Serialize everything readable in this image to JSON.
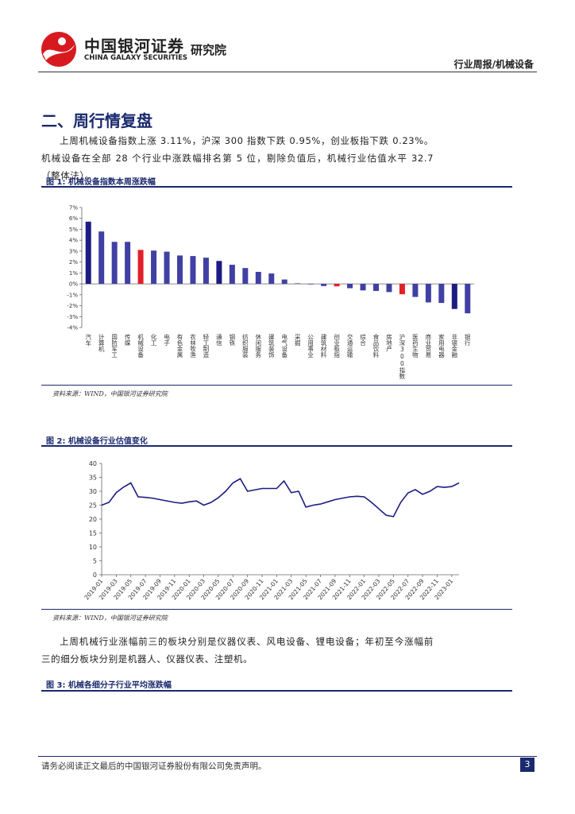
{
  "header": {
    "brand_cn": "中国银河证券",
    "brand_en": "CHINA GALAXY SECURITIES",
    "institute": "研究院",
    "report_type": "行业周报/机械设备"
  },
  "section": {
    "title": "二、周行情复盘"
  },
  "paragraphs": [
    "上周机械设备指数上涨 3.11%，沪深 300 指数下跌 0.95%，创业板指下跌 0.23%。机械设备在全部 28 个行业中涨跌幅排名第 5 位，剔除负值后，机械行业估值水平 32.7（整体法）。",
    "上周机械行业涨幅前三的板块分别是仪器仪表、风电设备、锂电设备；年初至今涨幅前三的细分板块分别是机器人、仪器仪表、注塑机。"
  ],
  "figures": [
    {
      "label": "图 1:",
      "title": "机械设备指数本周涨跌幅",
      "source": "资料来源：WIND，中国银河证券研究院",
      "chart_data": {
        "type": "bar",
        "categories": [
          "汽车",
          "计算机",
          "国防军工",
          "传媒",
          "机械设备",
          "化工",
          "电子",
          "有色金属",
          "农林牧渔",
          "轻工制造",
          "通信",
          "钢铁",
          "纺织服装",
          "休闲服务",
          "建筑装饰",
          "电气设备",
          "采掘",
          "公用事业",
          "建筑材料",
          "创业板指",
          "交通运输",
          "综合",
          "食品饮料",
          "房地产",
          "沪深300指数",
          "医药生物",
          "商业贸易",
          "家用电器",
          "非银金融",
          "银行"
        ],
        "values": [
          5.7,
          4.8,
          3.85,
          3.85,
          3.11,
          3.05,
          2.95,
          2.6,
          2.55,
          2.4,
          2.1,
          1.75,
          1.45,
          1.1,
          0.95,
          0.4,
          0.05,
          -0.05,
          -0.2,
          -0.23,
          -0.4,
          -0.6,
          -0.65,
          -0.75,
          -0.95,
          -1.2,
          -1.7,
          -1.75,
          -2.3,
          -2.7
        ],
        "colors": [
          "#1c1c82",
          "#4040a4",
          "#4040a4",
          "#4040a4",
          "#e2202a",
          "#4040a4",
          "#4040a4",
          "#4040a4",
          "#4040a4",
          "#4040a4",
          "#1c1c82",
          "#4040a4",
          "#4040a4",
          "#4040a4",
          "#4040a4",
          "#4040a4",
          "#4040a4",
          "#4040a4",
          "#4040a4",
          "#e2202a",
          "#4040a4",
          "#4040a4",
          "#4040a4",
          "#4040a4",
          "#e2202a",
          "#4040a4",
          "#4040a4",
          "#4040a4",
          "#1c1c82",
          "#4040a4"
        ],
        "ylim": [
          -4,
          7
        ],
        "yticks": [
          {
            "value": -4,
            "label": "-4%"
          },
          {
            "value": -3,
            "label": "-3%"
          },
          {
            "value": -2,
            "label": "-2%"
          },
          {
            "value": -1,
            "label": "-1%"
          },
          {
            "value": 0,
            "label": "0%"
          },
          {
            "value": 1,
            "label": "1%"
          },
          {
            "value": 2,
            "label": "2%"
          },
          {
            "value": 3,
            "label": "3%"
          },
          {
            "value": 4,
            "label": "4%"
          },
          {
            "value": 5,
            "label": "5%"
          },
          {
            "value": 6,
            "label": "6%"
          },
          {
            "value": 7,
            "label": "7%"
          }
        ],
        "grid": false
      }
    },
    {
      "label": "图 2:",
      "title": "机械设备行业估值变化",
      "source": "资料来源：WIND，中国银河证券研究院",
      "chart_data": {
        "type": "line",
        "x": [
          "2019-01",
          "2019-02",
          "2019-03",
          "2019-04",
          "2019-05",
          "2019-06",
          "2019-07",
          "2019-08",
          "2019-09",
          "2019-10",
          "2019-11",
          "2019-12",
          "2020-01",
          "2020-02",
          "2020-03",
          "2020-04",
          "2020-05",
          "2020-06",
          "2020-07",
          "2020-08",
          "2020-09",
          "2020-10",
          "2020-11",
          "2020-12",
          "2021-01",
          "2021-02",
          "2021-03",
          "2021-04",
          "2021-05",
          "2021-06",
          "2021-07",
          "2021-08",
          "2021-09",
          "2021-10",
          "2021-11",
          "2021-12",
          "2022-01",
          "2022-02",
          "2022-03",
          "2022-04",
          "2022-05",
          "2022-06",
          "2022-07",
          "2022-08",
          "2022-09",
          "2022-10",
          "2022-11",
          "2022-12",
          "2023-01",
          "2023-02"
        ],
        "values": [
          25,
          26,
          29.5,
          31.5,
          33,
          28,
          27.8,
          27.5,
          27,
          26.5,
          26,
          25.7,
          26.2,
          26.5,
          25,
          26,
          27.7,
          30,
          33,
          34.5,
          30,
          30.5,
          31,
          31,
          31,
          33.7,
          29.5,
          30,
          24.3,
          25,
          25.4,
          26.2,
          27,
          27.5,
          28,
          28.2,
          28,
          26,
          23.7,
          21.4,
          20.9,
          26,
          29.4,
          30.6,
          28.9,
          30,
          31.7,
          31.4,
          31.7,
          33
        ],
        "color": "#1c1c82",
        "ylim": [
          0,
          40
        ],
        "yticks": [
          0,
          5,
          10,
          15,
          20,
          25,
          30,
          35,
          40
        ],
        "xticks": [
          "2019-01",
          "2019-03",
          "2019-05",
          "2019-07",
          "2019-09",
          "2019-11",
          "2020-01",
          "2020-03",
          "2020-05",
          "2020-07",
          "2020-09",
          "2020-11",
          "2021-01",
          "2021-03",
          "2021-05",
          "2021-07",
          "2021-09",
          "2021-11",
          "2022-01",
          "2022-03",
          "2022-05",
          "2022-07",
          "2022-09",
          "2022-11",
          "2023-01"
        ],
        "grid": false
      }
    },
    {
      "label": "图 3:",
      "title": "机械各细分子行业平均涨跌幅"
    }
  ],
  "footer": {
    "disclaimer": "请务必阅读正文最后的中国银河证券股份有限公司免责声明。",
    "page": 3
  }
}
